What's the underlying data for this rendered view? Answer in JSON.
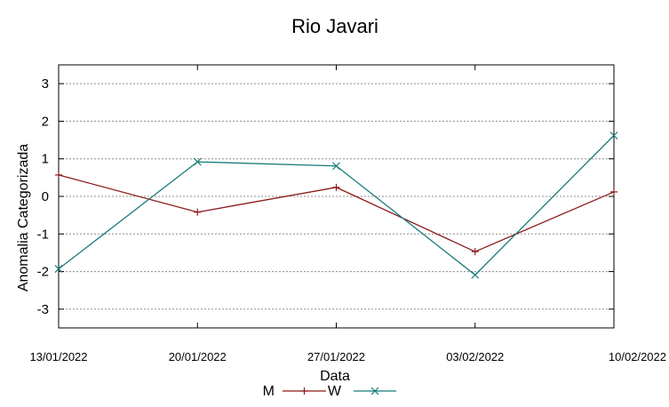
{
  "chart_data": {
    "type": "line",
    "title": "Rio Javari",
    "xlabel": "Data",
    "ylabel": "Anomalia Categorizada",
    "categories": [
      "13/01/2022",
      "20/01/2022",
      "27/01/2022",
      "03/02/2022",
      "10/02/2022"
    ],
    "yticks": [
      -3,
      -2,
      -1,
      0,
      1,
      2,
      3
    ],
    "ylim": [
      -3.5,
      3.5
    ],
    "grid": true,
    "legend_position": "bottom",
    "series": [
      {
        "name": "M",
        "marker": "plus",
        "color": "#8b1a1a",
        "values": [
          0.57,
          -0.42,
          0.24,
          -1.47,
          0.12
        ]
      },
      {
        "name": "W",
        "marker": "x",
        "color": "#177b7b",
        "values": [
          -1.93,
          0.92,
          0.81,
          -2.09,
          1.62
        ]
      }
    ]
  }
}
